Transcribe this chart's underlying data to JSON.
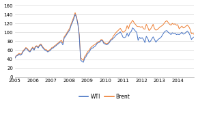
{
  "ylim": [
    0,
    160
  ],
  "yticks": [
    0,
    20,
    40,
    60,
    80,
    100,
    120,
    140,
    160
  ],
  "xtick_years": [
    2005,
    2006,
    2007,
    2008,
    2009,
    2010,
    2011,
    2012,
    2013,
    2014
  ],
  "xlim": [
    2005.0,
    2014.92
  ],
  "wti_color": "#4472c4",
  "brent_color": "#ed7d31",
  "legend_labels": [
    "WTI",
    "Brent"
  ],
  "background_color": "#ffffff",
  "grid_color": "#d9d9d9",
  "linewidth": 0.7,
  "wti_data": [
    42,
    47,
    48,
    51,
    49,
    51,
    57,
    60,
    64,
    62,
    58,
    56,
    61,
    65,
    60,
    67,
    68,
    65,
    70,
    72,
    67,
    63,
    60,
    59,
    56,
    58,
    60,
    64,
    65,
    68,
    70,
    73,
    75,
    78,
    78,
    72,
    87,
    91,
    96,
    101,
    105,
    115,
    122,
    130,
    140,
    133,
    118,
    93,
    38,
    35,
    33,
    42,
    46,
    52,
    55,
    60,
    65,
    65,
    68,
    70,
    75,
    77,
    78,
    82,
    81,
    75,
    74,
    72,
    74,
    77,
    82,
    84,
    87,
    90,
    94,
    96,
    98,
    101,
    96,
    89,
    88,
    90,
    98,
    91,
    99,
    102,
    110,
    107,
    103,
    100,
    82,
    89,
    86,
    88,
    84,
    77,
    91,
    87,
    78,
    80,
    85,
    90,
    84,
    78,
    82,
    85,
    87,
    90,
    95,
    100,
    103,
    104,
    100,
    98,
    95,
    99,
    97,
    98,
    95,
    96,
    95,
    97,
    100,
    96,
    97,
    100,
    103,
    99,
    93,
    84,
    88,
    90
  ],
  "brent_data": [
    43,
    48,
    50,
    53,
    51,
    53,
    59,
    62,
    66,
    64,
    60,
    58,
    63,
    67,
    62,
    69,
    70,
    67,
    72,
    74,
    69,
    65,
    62,
    61,
    58,
    60,
    62,
    66,
    67,
    70,
    72,
    75,
    77,
    80,
    82,
    76,
    90,
    94,
    99,
    104,
    109,
    118,
    126,
    134,
    144,
    135,
    120,
    96,
    43,
    40,
    37,
    46,
    50,
    56,
    59,
    64,
    68,
    70,
    72,
    74,
    77,
    79,
    80,
    84,
    83,
    77,
    76,
    74,
    76,
    79,
    84,
    86,
    92,
    96,
    100,
    103,
    106,
    109,
    104,
    100,
    102,
    105,
    115,
    108,
    118,
    122,
    127,
    122,
    118,
    114,
    113,
    113,
    111,
    113,
    108,
    107,
    118,
    112,
    104,
    107,
    112,
    118,
    108,
    105,
    106,
    109,
    112,
    114,
    116,
    120,
    124,
    126,
    122,
    118,
    116,
    120,
    118,
    119,
    116,
    117,
    108,
    111,
    114,
    110,
    111,
    114,
    116,
    113,
    107,
    97,
    98,
    95
  ]
}
